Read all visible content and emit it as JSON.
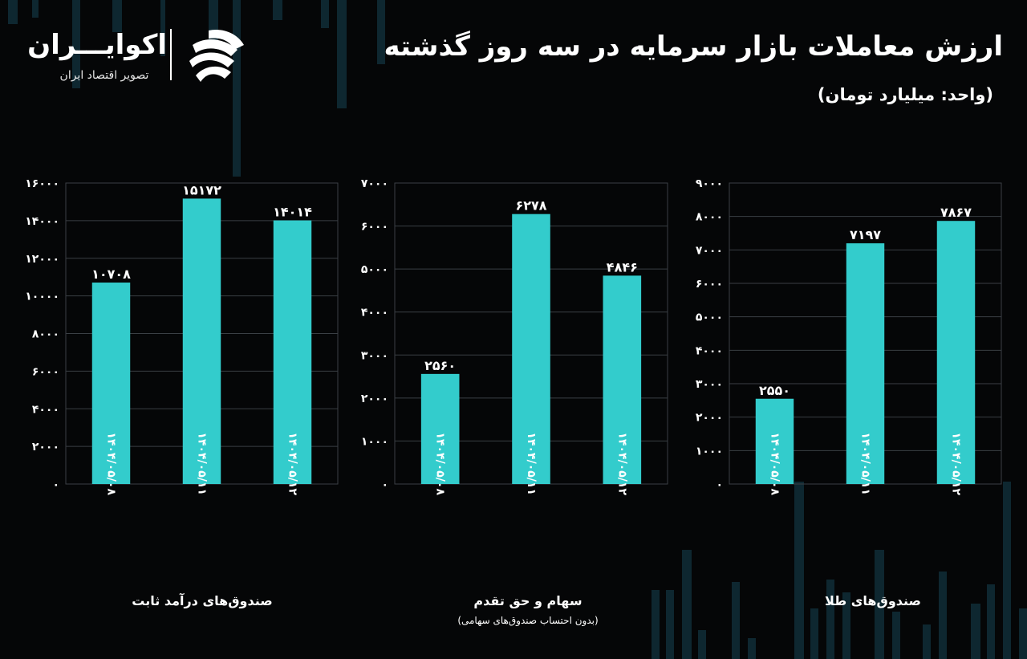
{
  "header": {
    "title": "ارزش معاملات بازار سرمایه در سه روز گذشته",
    "unit": "(واحد: میلیارد تومان)"
  },
  "logo": {
    "name": "اکوایـــران",
    "tagline": "تصویر اقتصاد ایران"
  },
  "colors": {
    "background": "#050607",
    "bar": "#33cccc",
    "grid": "#3a3f44",
    "text": "#ffffff",
    "decor_bars": "#0e2730"
  },
  "chart_data": [
    {
      "type": "bar",
      "title": "صندوق‌های درآمد ثابت",
      "subtitle": "",
      "categories": [
        "۱۴۰۴/۰۵/۰۸",
        "۱۴۰۴/۰۵/۱۱",
        "۱۴۰۴/۰۵/۱۲"
      ],
      "values": [
        10708,
        15172,
        14014
      ],
      "value_labels": [
        "۱۰۷۰۸",
        "۱۵۱۷۲",
        "۱۴۰۱۴"
      ],
      "ylim": [
        0,
        16000
      ],
      "yticks": [
        0,
        2000,
        4000,
        6000,
        8000,
        10000,
        12000,
        14000,
        16000
      ],
      "ytick_labels": [
        "۰",
        "۲۰۰۰",
        "۴۰۰۰",
        "۶۰۰۰",
        "۸۰۰۰",
        "۱۰۰۰۰",
        "۱۲۰۰۰",
        "۱۴۰۰۰",
        "۱۶۰۰۰"
      ],
      "grid": true
    },
    {
      "type": "bar",
      "title": "سهام و حق تقدم",
      "subtitle": "(بدون احتساب صندوق‌های سهامی)",
      "categories": [
        "۱۴۰۴/۰۵/۰۸",
        "۱۴۰۴/۰۵/۱۱",
        "۱۴۰۴/۰۵/۱۲"
      ],
      "values": [
        2560,
        6278,
        4846
      ],
      "value_labels": [
        "۲۵۶۰",
        "۶۲۷۸",
        "۴۸۴۶"
      ],
      "ylim": [
        0,
        7000
      ],
      "yticks": [
        0,
        1000,
        2000,
        3000,
        4000,
        5000,
        6000,
        7000
      ],
      "ytick_labels": [
        "۰",
        "۱۰۰۰",
        "۲۰۰۰",
        "۳۰۰۰",
        "۴۰۰۰",
        "۵۰۰۰",
        "۶۰۰۰",
        "۷۰۰۰"
      ],
      "grid": true
    },
    {
      "type": "bar",
      "title": "صندوق‌های طلا",
      "subtitle": "",
      "categories": [
        "۱۴۰۴/۰۵/۰۸",
        "۱۴۰۴/۰۵/۱۱",
        "۱۴۰۴/۰۵/۱۲"
      ],
      "values": [
        2550,
        7197,
        7867
      ],
      "value_labels": [
        "۲۵۵۰",
        "۷۱۹۷",
        "۷۸۶۷"
      ],
      "ylim": [
        0,
        9000
      ],
      "yticks": [
        0,
        1000,
        2000,
        3000,
        4000,
        5000,
        6000,
        7000,
        8000,
        9000
      ],
      "ytick_labels": [
        "۰",
        "۱۰۰۰",
        "۲۰۰۰",
        "۳۰۰۰",
        "۴۰۰۰",
        "۵۰۰۰",
        "۶۰۰۰",
        "۷۰۰۰",
        "۸۰۰۰",
        "۹۰۰۰"
      ],
      "grid": true
    }
  ]
}
